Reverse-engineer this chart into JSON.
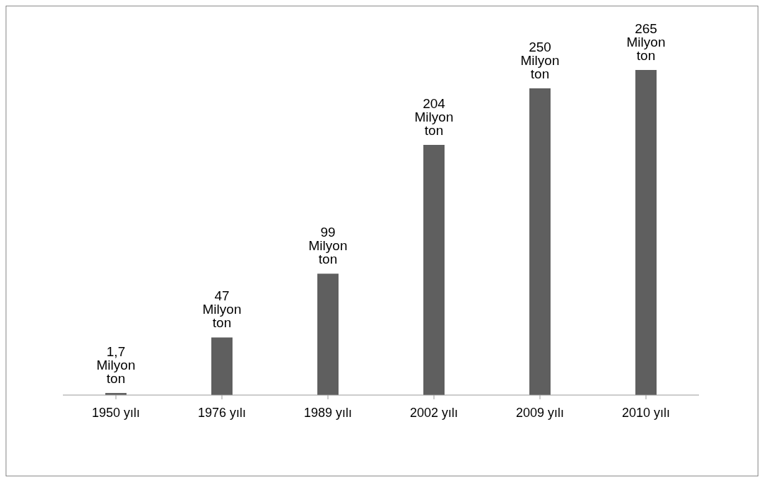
{
  "chart_data": {
    "type": "bar",
    "categories": [
      "1950 yılı",
      "1976 yılı",
      "1989 yılı",
      "2002 yılı",
      "2009 yılı",
      "2010 yılı"
    ],
    "values": [
      1.7,
      47,
      99,
      204,
      250,
      265
    ],
    "color": "#5f5f5f",
    "value_labels": [
      "1,7 Milyon ton",
      "47 Milyon ton",
      "99 Milyon ton",
      "204 Milyon ton",
      "250 Milyon ton",
      "265 Milyon ton"
    ],
    "grid": false,
    "legend": false
  }
}
